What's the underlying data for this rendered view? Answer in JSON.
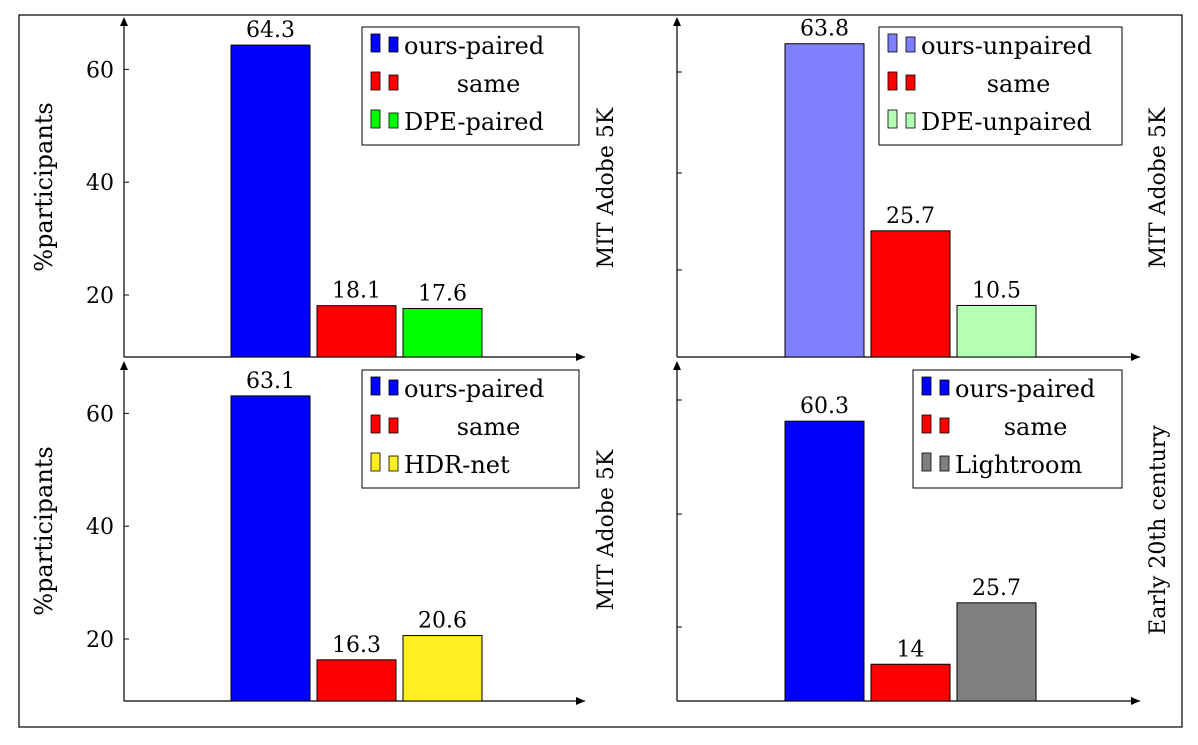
{
  "chart_data": [
    {
      "type": "bar",
      "categories": [
        "ours-paired",
        "same",
        "DPE-paired"
      ],
      "values": [
        64.3,
        18.1,
        17.6
      ],
      "value_labels": [
        "64.3",
        "18.1",
        "17.6"
      ],
      "colors": [
        "#0000ff",
        "#ff0000",
        "#00ff00"
      ],
      "legend": [
        "ours-paired",
        "same",
        "DPE-paired"
      ],
      "legend_position": "top-right",
      "ylabel": "%participants",
      "side_label": "MIT Adobe 5K",
      "yticks": [
        20,
        40,
        60
      ],
      "ylim": [
        9,
        70
      ]
    },
    {
      "type": "bar",
      "categories": [
        "ours-unpaired",
        "same",
        "DPE-unpaired"
      ],
      "values": [
        63.8,
        25.7,
        10.5
      ],
      "value_labels": [
        "63.8",
        "25.7",
        "10.5"
      ],
      "colors": [
        "#8080ff",
        "#ff0000",
        "#b3ffb3"
      ],
      "legend": [
        "ours-unpaired",
        "same",
        "DPE-unpaired"
      ],
      "legend_position": "top-right",
      "ylabel": "",
      "side_label": "MIT Adobe 5K",
      "yticks": [],
      "ylim": [
        0,
        70
      ]
    },
    {
      "type": "bar",
      "categories": [
        "ours-paired",
        "same",
        "HDR-net"
      ],
      "values": [
        63.1,
        16.3,
        20.6
      ],
      "value_labels": [
        "63.1",
        "16.3",
        "20.6"
      ],
      "colors": [
        "#0000ff",
        "#ff0000",
        "#ffee22"
      ],
      "legend": [
        "ours-paired",
        "same",
        "HDR-net"
      ],
      "legend_position": "top-right",
      "ylabel": "%participants",
      "side_label": "MIT Adobe 5K",
      "yticks": [
        20,
        40,
        60
      ],
      "ylim": [
        9,
        70
      ]
    },
    {
      "type": "bar",
      "categories": [
        "ours-paired",
        "same",
        "Lightroom"
      ],
      "values": [
        60.3,
        14,
        25.7
      ],
      "value_labels": [
        "60.3",
        "14",
        "25.7"
      ],
      "colors": [
        "#0000ff",
        "#ff0000",
        "#808080"
      ],
      "legend": [
        "ours-paired",
        "same",
        "Lightroom"
      ],
      "legend_position": "top-right",
      "ylabel": "",
      "side_label": "Early 20th century",
      "yticks": [],
      "ylim": [
        7,
        70
      ]
    }
  ]
}
